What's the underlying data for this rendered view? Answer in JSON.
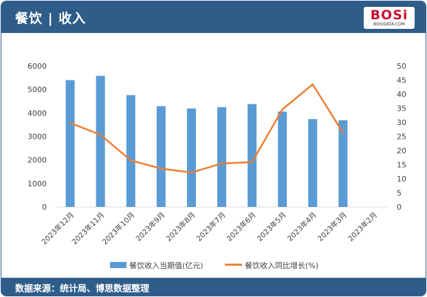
{
  "header": {
    "title": "餐饮 | 收入"
  },
  "logo": {
    "text": "BOSi",
    "sub": "BOSIDATA.COM"
  },
  "footer": {
    "source": "数据来源：统计局、博思数据整理"
  },
  "colors": {
    "bar": "#5b9bd5",
    "line": "#ed7d31",
    "header": "#2f5d8a"
  },
  "chart_data": {
    "type": "bar",
    "categories": [
      "2023年12月",
      "2023年11月",
      "2023年10月",
      "2023年9月",
      "2023年8月",
      "2023年7月",
      "2023年6月",
      "2023年5月",
      "2023年4月",
      "2023年3月",
      "2023年2月"
    ],
    "series": [
      {
        "name": "餐饮收入当期值(亿元)",
        "type": "bar",
        "axis": "left",
        "values": [
          5400,
          5580,
          4760,
          4290,
          4190,
          4250,
          4380,
          4060,
          3740,
          3690,
          null
        ]
      },
      {
        "name": "餐饮收入同比增长(%)",
        "type": "line",
        "axis": "right",
        "values": [
          29.8,
          25.6,
          16.5,
          13.6,
          12.2,
          15.4,
          15.9,
          34.6,
          43.5,
          26.3,
          null
        ]
      }
    ],
    "y_left": {
      "min": 0,
      "max": 6000,
      "ticks": [
        "0",
        "1000",
        "2000",
        "3000",
        "4000",
        "5000",
        "6000"
      ]
    },
    "y_right": {
      "min": 0,
      "max": 50,
      "ticks": [
        "0",
        "5",
        "10",
        "15",
        "20",
        "25",
        "30",
        "35",
        "40",
        "45",
        "50"
      ]
    },
    "legend_position": "bottom",
    "grid": false
  }
}
